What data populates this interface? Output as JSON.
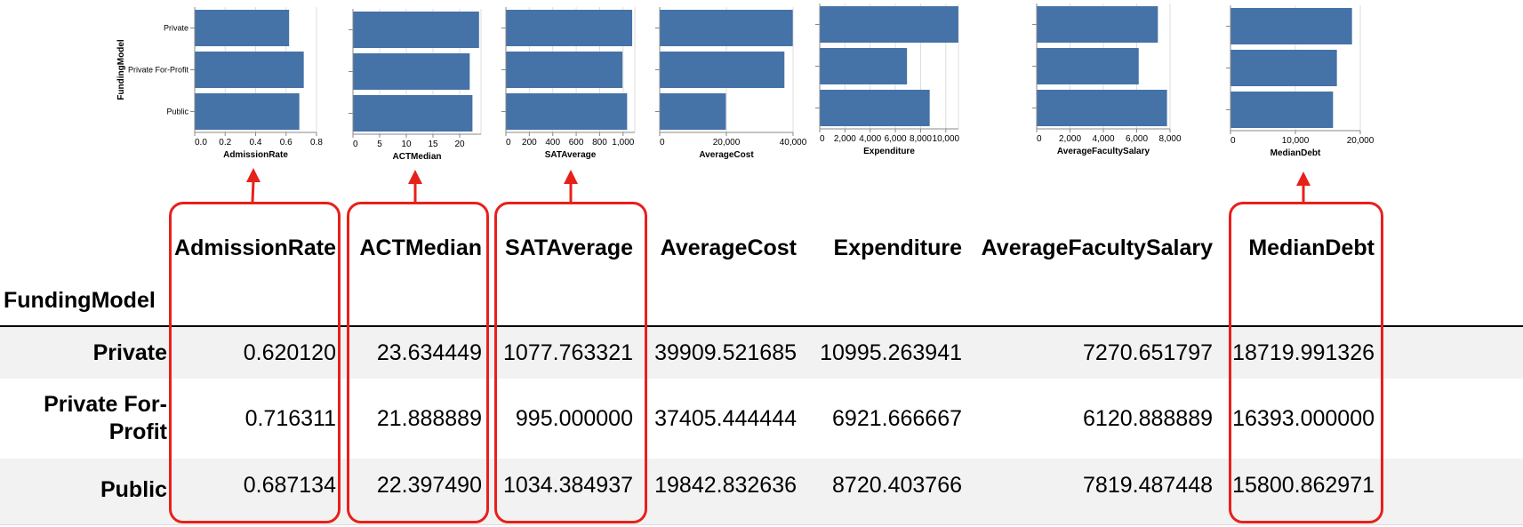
{
  "chart_data": [
    {
      "type": "bar",
      "orientation": "horizontal",
      "ylabel": "FundingModel",
      "xlabel": "AdmissionRate",
      "categories": [
        "Private",
        "Private For-Profit",
        "Public"
      ],
      "values": [
        0.62012,
        0.716311,
        0.687134
      ],
      "xlim": [
        0,
        0.8
      ],
      "xticks": [
        "0.0",
        "0.2",
        "0.4",
        "0.6",
        "0.8"
      ],
      "xtick_values": [
        0,
        0.2,
        0.4,
        0.6,
        0.8
      ],
      "grid": true
    },
    {
      "type": "bar",
      "orientation": "horizontal",
      "xlabel": "ACTMedian",
      "categories": [
        "Private",
        "Private For-Profit",
        "Public"
      ],
      "values": [
        23.634449,
        21.888889,
        22.39749
      ],
      "xlim": [
        0,
        24
      ],
      "xticks": [
        "0",
        "5",
        "10",
        "15",
        "20"
      ],
      "xtick_values": [
        0,
        5,
        10,
        15,
        20
      ],
      "grid": true
    },
    {
      "type": "bar",
      "orientation": "horizontal",
      "xlabel": "SATAverage",
      "categories": [
        "Private",
        "Private For-Profit",
        "Public"
      ],
      "values": [
        1077.763321,
        995.0,
        1034.384937
      ],
      "xlim": [
        0,
        1100
      ],
      "xticks": [
        "0",
        "200",
        "400",
        "600",
        "800",
        "1,000"
      ],
      "xtick_values": [
        0,
        200,
        400,
        600,
        800,
        1000
      ],
      "grid": true
    },
    {
      "type": "bar",
      "orientation": "horizontal",
      "xlabel": "AverageCost",
      "categories": [
        "Private",
        "Private For-Profit",
        "Public"
      ],
      "values": [
        39909.521685,
        37405.444444,
        19842.832636
      ],
      "xlim": [
        0,
        40000
      ],
      "xticks": [
        "0",
        "20,000",
        "40,000"
      ],
      "xtick_values": [
        0,
        20000,
        40000
      ],
      "grid": true
    },
    {
      "type": "bar",
      "orientation": "horizontal",
      "xlabel": "Expenditure",
      "categories": [
        "Private",
        "Private For-Profit",
        "Public"
      ],
      "values": [
        10995.263941,
        6921.666667,
        8720.403766
      ],
      "xlim": [
        0,
        11000
      ],
      "xticks": [
        "0",
        "2,000",
        "4,000",
        "6,000",
        "8,000",
        "10,000"
      ],
      "xtick_values": [
        0,
        2000,
        4000,
        6000,
        8000,
        10000
      ],
      "grid": true
    },
    {
      "type": "bar",
      "orientation": "horizontal",
      "xlabel": "AverageFacultySalary",
      "categories": [
        "Private",
        "Private For-Profit",
        "Public"
      ],
      "values": [
        7270.651797,
        6120.888889,
        7819.487448
      ],
      "xlim": [
        0,
        8000
      ],
      "xticks": [
        "0",
        "2,000",
        "4,000",
        "6,000",
        "8,000"
      ],
      "xtick_values": [
        0,
        2000,
        4000,
        6000,
        8000
      ],
      "grid": true
    },
    {
      "type": "bar",
      "orientation": "horizontal",
      "xlabel": "MedianDebt",
      "categories": [
        "Private",
        "Private For-Profit",
        "Public"
      ],
      "values": [
        18719.991326,
        16393.0,
        15800.862971
      ],
      "xlim": [
        0,
        20000
      ],
      "xticks": [
        "0",
        "10,000",
        "20,000"
      ],
      "xtick_values": [
        0,
        10000,
        20000
      ],
      "grid": true
    }
  ],
  "table": {
    "index_name": "FundingModel",
    "columns": [
      "AdmissionRate",
      "ACTMedian",
      "SATAverage",
      "AverageCost",
      "Expenditure",
      "AverageFacultySalary",
      "MedianDebt"
    ],
    "rows": [
      {
        "label": "Private",
        "cells": [
          "0.620120",
          "23.634449",
          "1077.763321",
          "39909.521685",
          "10995.263941",
          "7270.651797",
          "18719.991326"
        ]
      },
      {
        "label": "Private For-Profit",
        "cells": [
          "0.716311",
          "21.888889",
          "995.000000",
          "37405.444444",
          "6921.666667",
          "6120.888889",
          "16393.000000"
        ]
      },
      {
        "label": "Public",
        "cells": [
          "0.687134",
          "22.397490",
          "1034.384937",
          "19842.832636",
          "8720.403766",
          "7819.487448",
          "15800.862971"
        ]
      }
    ]
  },
  "colors": {
    "bar": "#4572A7",
    "highlight": "#e8201a",
    "row_shade": "#f2f2f2"
  },
  "highlighted_columns": [
    "AdmissionRate",
    "ACTMedian",
    "SATAverage",
    "MedianDebt"
  ]
}
